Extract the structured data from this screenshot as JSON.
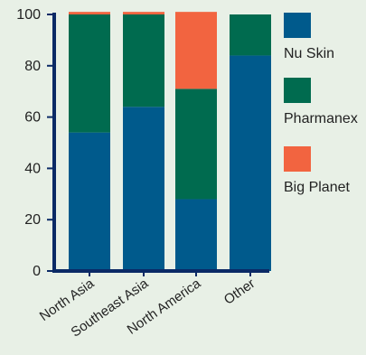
{
  "chart_data": {
    "type": "bar",
    "stacked": true,
    "categories": [
      "North Asia",
      "Southeast Asia",
      "North America",
      "Other"
    ],
    "series": [
      {
        "name": "Nu Skin",
        "color": "#005a8c",
        "values": [
          54,
          64,
          28,
          84
        ]
      },
      {
        "name": "Pharmanex",
        "color": "#006b4f",
        "values": [
          46,
          36,
          43,
          16
        ]
      },
      {
        "name": "Big Planet",
        "color": "#f26440",
        "values": [
          1,
          1,
          30,
          0
        ]
      }
    ],
    "ylim": [
      0,
      100
    ],
    "yticks": [
      0,
      20,
      40,
      60,
      80,
      100
    ],
    "xlabel": "",
    "ylabel": "",
    "title": "",
    "grid": false,
    "legend_position": "right",
    "axis_color": "#0b2a66"
  }
}
